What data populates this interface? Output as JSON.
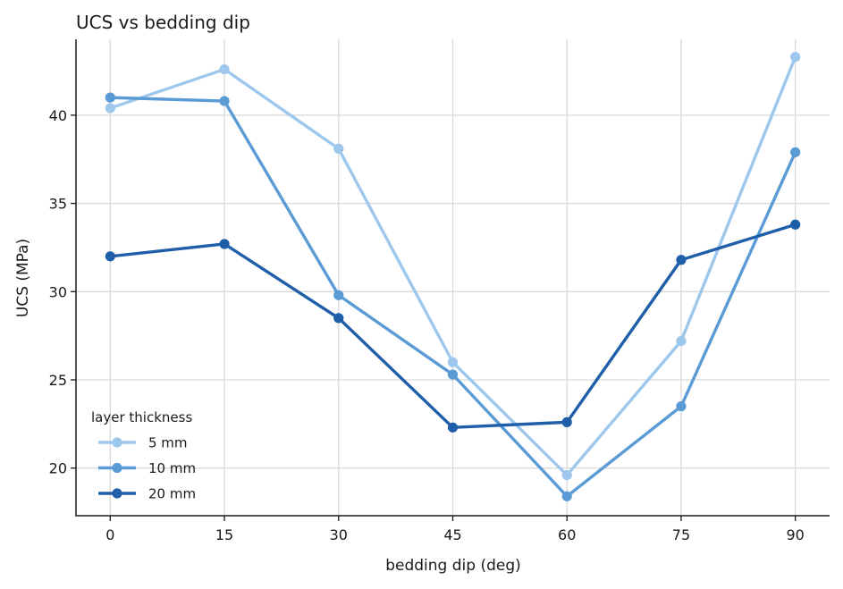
{
  "chart_data": {
    "type": "line",
    "title": "UCS vs bedding dip",
    "xlabel": "bedding dip (deg)",
    "ylabel": "UCS (MPa)",
    "x": [
      0,
      15,
      30,
      45,
      60,
      75,
      90
    ],
    "x_ticks": [
      "0",
      "15",
      "30",
      "45",
      "60",
      "75",
      "90"
    ],
    "y_ticks": [
      "20",
      "25",
      "30",
      "35",
      "40"
    ],
    "xlim": [
      -4.5,
      94.5
    ],
    "ylim": [
      17.3,
      44.3
    ],
    "grid": true,
    "legend_title": "layer thickness",
    "legend_position": "lower-left",
    "series": [
      {
        "name": "5 mm",
        "color": "#9dc7ec",
        "values": [
          40.4,
          42.6,
          38.1,
          26.0,
          19.6,
          27.2,
          43.3
        ]
      },
      {
        "name": "10 mm",
        "color": "#5b9bd5",
        "values": [
          41.0,
          40.8,
          29.8,
          25.3,
          18.4,
          23.5,
          37.9
        ]
      },
      {
        "name": "20 mm",
        "color": "#1f5ea8",
        "values": [
          32.0,
          32.7,
          28.5,
          22.3,
          22.6,
          31.8,
          33.8
        ]
      }
    ]
  }
}
